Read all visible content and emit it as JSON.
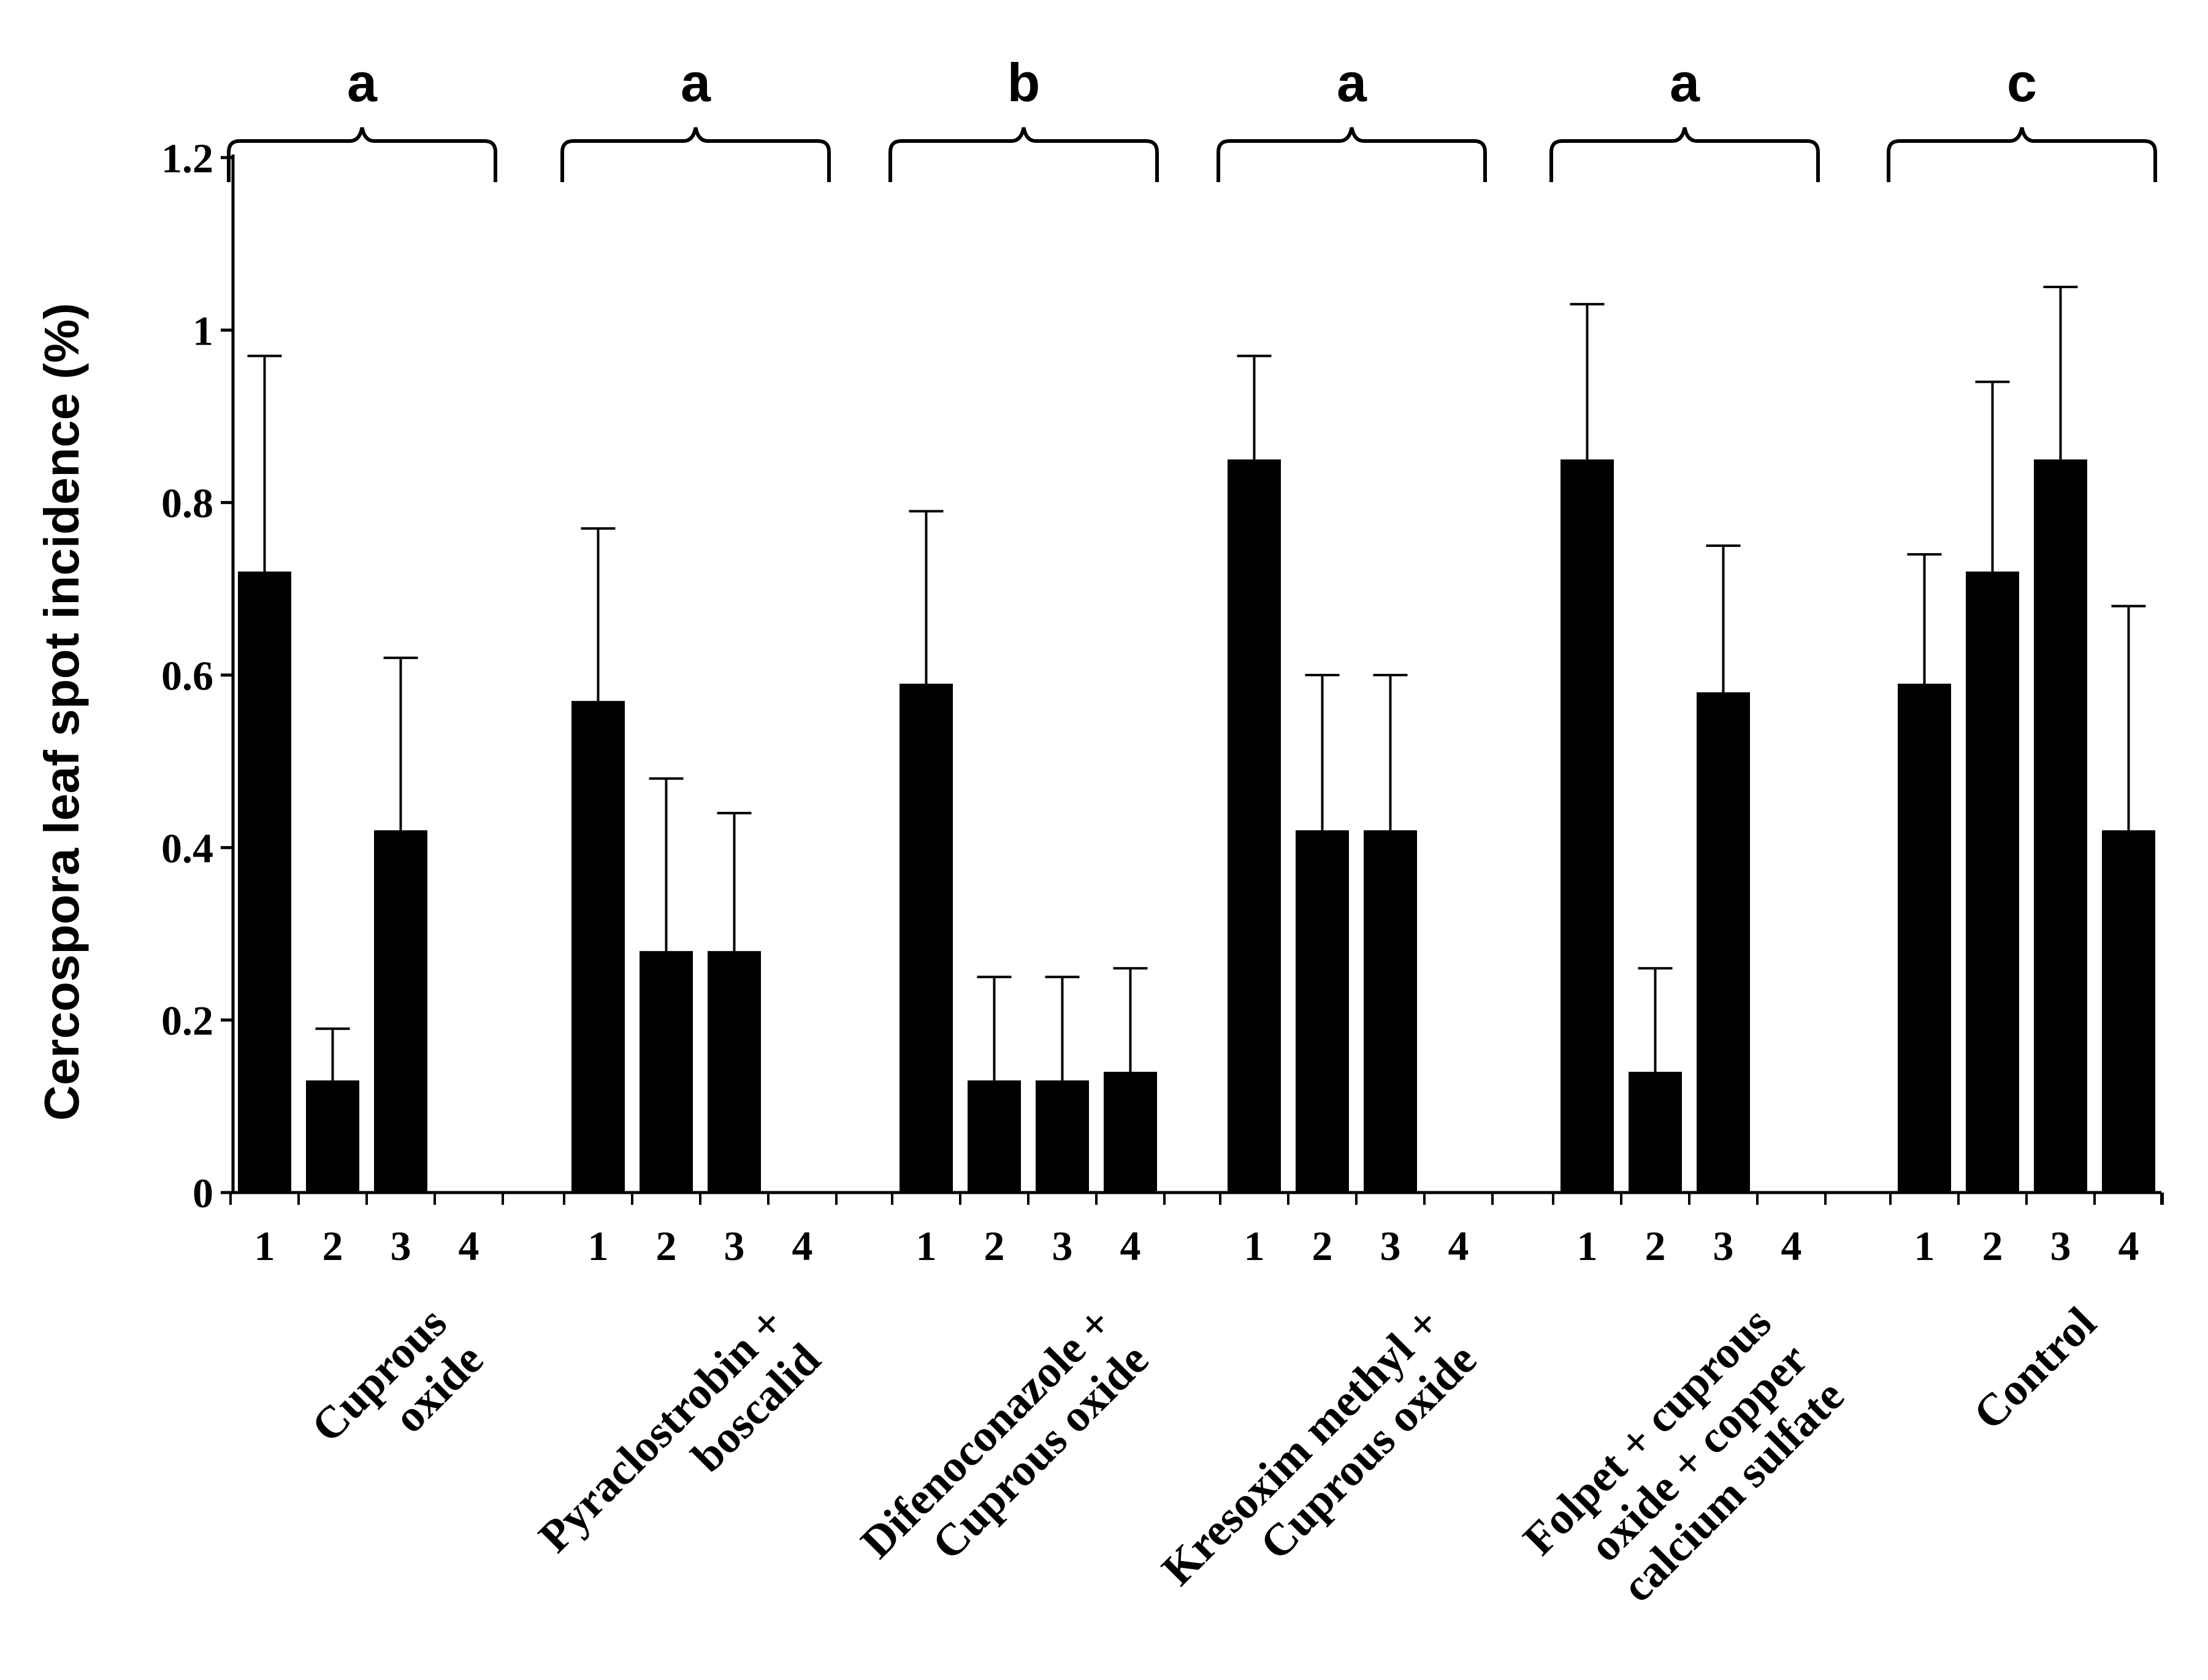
{
  "chart_data": {
    "type": "bar",
    "ylabel": "Cercospora leaf spot incidence (%)",
    "xlabel": "",
    "ylim": [
      0,
      1.2
    ],
    "yticks": [
      "0",
      "0.2",
      "0.4",
      "0.6",
      "0.8",
      "1",
      "1.2"
    ],
    "ytick_values": [
      0,
      0.2,
      0.4,
      0.6,
      0.8,
      1.0,
      1.2
    ],
    "sub_labels": [
      "1",
      "2",
      "3",
      "4"
    ],
    "groups": [
      {
        "name": "Cuprous oxide",
        "label_lines": [
          "Cuprous",
          "oxide"
        ],
        "letter": "a",
        "values": [
          0.72,
          0.13,
          0.42,
          0
        ],
        "errors": [
          0.97,
          0.19,
          0.62,
          null
        ]
      },
      {
        "name": "Pyraclostrobin + boscalid",
        "label_lines": [
          "Pyraclostrobin +",
          "boscalid"
        ],
        "letter": "a",
        "values": [
          0.57,
          0.28,
          0.28,
          0
        ],
        "errors": [
          0.77,
          0.48,
          0.44,
          null
        ]
      },
      {
        "name": "Difenoconazole + Cuprous oxide",
        "label_lines": [
          "Difenoconazole +",
          "Cuprous oxide"
        ],
        "letter": "b",
        "values": [
          0.59,
          0.13,
          0.13,
          0.14
        ],
        "errors": [
          0.79,
          0.25,
          0.25,
          0.26
        ]
      },
      {
        "name": "Kresoxim methyl + Cuprous oxide",
        "label_lines": [
          "Kresoxim methyl +",
          "Cuprous oxide"
        ],
        "letter": "a",
        "values": [
          0.85,
          0.42,
          0.42,
          0
        ],
        "errors": [
          0.97,
          0.6,
          0.6,
          null
        ]
      },
      {
        "name": "Folpet + cuprous oxide + copper calcium sulfate",
        "label_lines": [
          "Folpet + cuprous",
          "oxide + copper",
          "calcium sulfate"
        ],
        "letter": "a",
        "values": [
          0.85,
          0.14,
          0.58,
          0
        ],
        "errors": [
          1.03,
          0.26,
          0.75,
          null
        ]
      },
      {
        "name": "Control",
        "label_lines": [
          "Control"
        ],
        "letter": "c",
        "values": [
          0.59,
          0.72,
          0.85,
          0.42
        ],
        "errors": [
          0.74,
          0.94,
          1.05,
          0.68
        ]
      }
    ],
    "bar_color": "#000000",
    "grid": false,
    "legend": "none"
  }
}
